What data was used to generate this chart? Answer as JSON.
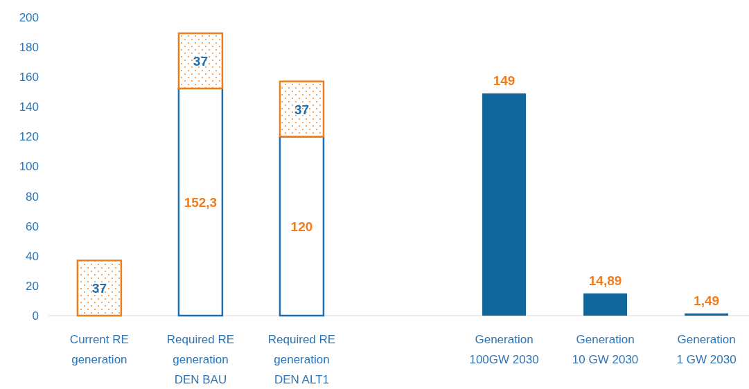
{
  "chart_data": {
    "type": "bar",
    "stacked": true,
    "categories": [
      "Current RE generation",
      "Required RE generation DEN BAU",
      "Required RE generation DEN ALT1",
      null,
      "Generation 100GW 2030",
      "Generation 10 GW 2030",
      "Generation 1 GW 2030"
    ],
    "series": [
      {
        "color": "#1f6fb0",
        "values": [
          null,
          152.3,
          120,
          null,
          null,
          null,
          null
        ],
        "value_labels": [
          null,
          "152,3",
          "120",
          null,
          null,
          null,
          null
        ]
      },
      {
        "color": "#f07d1c",
        "values": [
          37,
          37,
          37,
          null,
          null,
          null,
          null
        ],
        "value_labels": [
          "37",
          "37",
          "37",
          null,
          null,
          null,
          null
        ]
      },
      {
        "color": "#11679b",
        "values": [
          null,
          null,
          null,
          null,
          149,
          14.89,
          1.49
        ],
        "value_labels": [
          null,
          null,
          null,
          null,
          "149",
          "14,89",
          "1,49"
        ]
      }
    ],
    "ylim": [
      0,
      200
    ],
    "yticks": [
      0,
      20,
      40,
      60,
      80,
      100,
      120,
      140,
      160,
      180,
      200
    ],
    "grid": false
  }
}
